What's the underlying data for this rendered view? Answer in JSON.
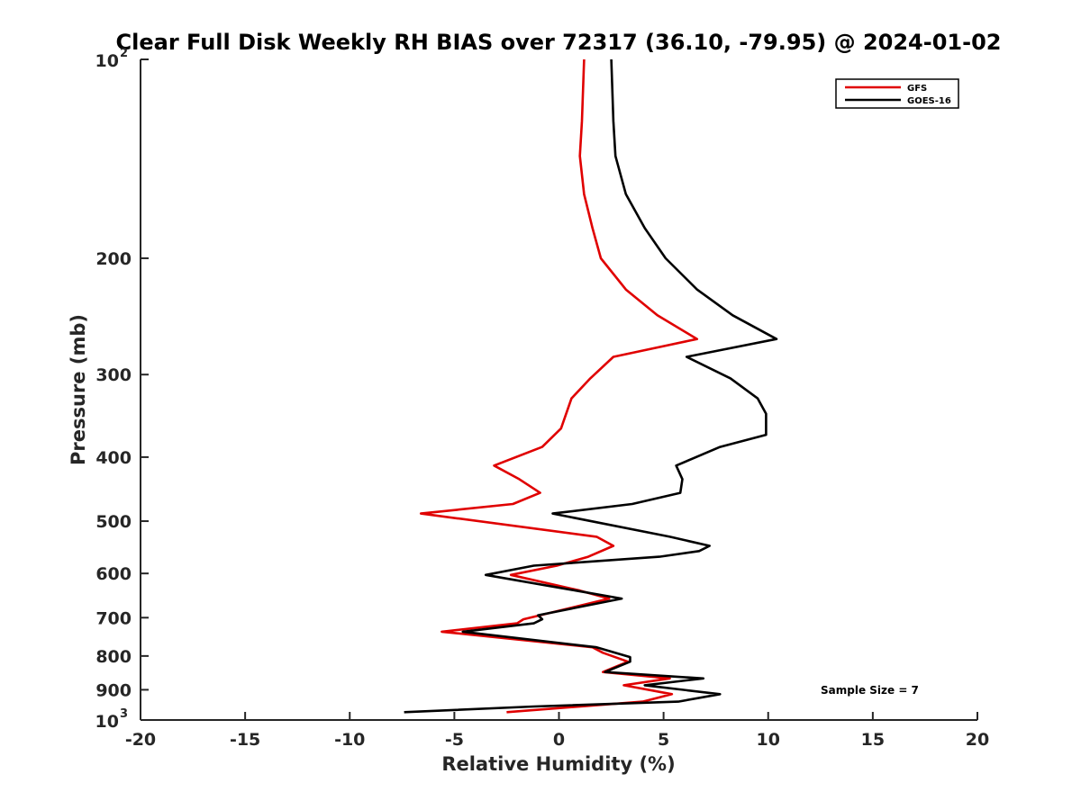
{
  "chart_data": {
    "type": "line",
    "title": "Clear Full Disk Weekly RH BIAS over 72317 (36.10, -79.95) @ 2024-01-02",
    "xlabel": "Relative Humidity (%)",
    "ylabel": "Pressure (mb)",
    "xlim": [
      -20,
      20
    ],
    "ylim": [
      100,
      1000
    ],
    "y_scale": "log",
    "y_reversed": true,
    "grid": false,
    "legend_position": "top-right",
    "x_ticks": [
      "-20",
      "-15",
      "-10",
      "-5",
      "0",
      "5",
      "10",
      "15",
      "20"
    ],
    "y_ticks": [
      {
        "value": 100,
        "label": "10",
        "exp": "2"
      },
      {
        "value": 200,
        "label": "200",
        "exp": ""
      },
      {
        "value": 300,
        "label": "300",
        "exp": ""
      },
      {
        "value": 400,
        "label": "400",
        "exp": ""
      },
      {
        "value": 500,
        "label": "500",
        "exp": ""
      },
      {
        "value": 600,
        "label": "600",
        "exp": ""
      },
      {
        "value": 700,
        "label": "700",
        "exp": ""
      },
      {
        "value": 800,
        "label": "800",
        "exp": ""
      },
      {
        "value": 900,
        "label": "900",
        "exp": ""
      },
      {
        "value": 1000,
        "label": "10",
        "exp": "3"
      }
    ],
    "annotation": "Sample Size = 7",
    "series": [
      {
        "name": "GFS",
        "color": "#e00000",
        "points": [
          [
            1.2,
            100
          ],
          [
            1.1,
            124
          ],
          [
            1.0,
            140
          ],
          [
            1.2,
            160
          ],
          [
            1.6,
            180
          ],
          [
            2.0,
            200
          ],
          [
            3.2,
            223
          ],
          [
            4.7,
            244
          ],
          [
            6.6,
            265
          ],
          [
            2.6,
            282
          ],
          [
            1.5,
            304
          ],
          [
            0.6,
            326
          ],
          [
            0.1,
            362
          ],
          [
            -0.8,
            386
          ],
          [
            -3.1,
            412
          ],
          [
            -1.9,
            432
          ],
          [
            -0.9,
            453
          ],
          [
            -2.2,
            471
          ],
          [
            -6.6,
            487
          ],
          [
            1.8,
            528
          ],
          [
            2.6,
            545
          ],
          [
            1.4,
            566
          ],
          [
            -0.1,
            584
          ],
          [
            -2.3,
            603
          ],
          [
            1.0,
            637
          ],
          [
            2.4,
            655
          ],
          [
            -1.7,
            704
          ],
          [
            -2.0,
            714
          ],
          [
            -5.6,
            735
          ],
          [
            1.6,
            776
          ],
          [
            2.1,
            791
          ],
          [
            3.3,
            816
          ],
          [
            2.1,
            846
          ],
          [
            5.3,
            865
          ],
          [
            3.1,
            886
          ],
          [
            5.4,
            914
          ],
          [
            4.0,
            938
          ],
          [
            -2.5,
            973
          ]
        ]
      },
      {
        "name": "GOES-16",
        "color": "#000000",
        "points": [
          [
            2.5,
            100
          ],
          [
            2.6,
            124
          ],
          [
            2.7,
            140
          ],
          [
            3.2,
            160
          ],
          [
            4.1,
            180
          ],
          [
            5.1,
            200
          ],
          [
            6.6,
            223
          ],
          [
            8.3,
            244
          ],
          [
            10.4,
            265
          ],
          [
            6.1,
            282
          ],
          [
            8.2,
            304
          ],
          [
            9.5,
            326
          ],
          [
            9.9,
            344
          ],
          [
            9.9,
            370
          ],
          [
            7.7,
            386
          ],
          [
            5.6,
            412
          ],
          [
            5.9,
            432
          ],
          [
            5.8,
            453
          ],
          [
            3.5,
            471
          ],
          [
            -0.3,
            487
          ],
          [
            5.3,
            528
          ],
          [
            7.2,
            545
          ],
          [
            6.7,
            555
          ],
          [
            4.8,
            566
          ],
          [
            -1.2,
            584
          ],
          [
            -3.5,
            603
          ],
          [
            0.8,
            637
          ],
          [
            3.0,
            655
          ],
          [
            -1.0,
            694
          ],
          [
            -0.8,
            704
          ],
          [
            -1.2,
            714
          ],
          [
            -4.6,
            735
          ],
          [
            1.8,
            776
          ],
          [
            3.4,
            803
          ],
          [
            3.4,
            816
          ],
          [
            2.2,
            846
          ],
          [
            6.9,
            865
          ],
          [
            4.1,
            886
          ],
          [
            7.7,
            914
          ],
          [
            5.7,
            938
          ],
          [
            -1.2,
            954
          ],
          [
            -7.4,
            973
          ]
        ]
      }
    ]
  }
}
